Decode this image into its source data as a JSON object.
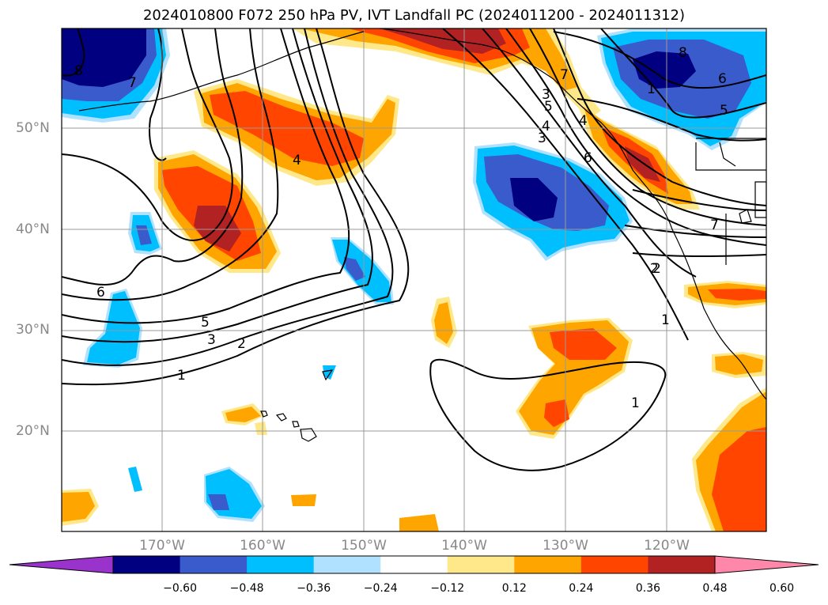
{
  "title": "2024010800 F072 250 hPa PV, IVT Landfall PC (2024011200 - 2024011312)",
  "lat_labels": [
    "50°N",
    "40°N",
    "30°N",
    "20°N"
  ],
  "lon_labels": [
    "170°W",
    "160°W",
    "150°W",
    "140°W",
    "130°W",
    "120°W"
  ],
  "contour_labels": [
    "8",
    "7",
    "6",
    "5",
    "4",
    "3",
    "2",
    "1",
    "4",
    "3",
    "2",
    "5",
    "6",
    "7",
    "1",
    "6",
    "5",
    "4",
    "3",
    "2",
    "1",
    "1",
    "7",
    "8",
    "6",
    "5"
  ],
  "colorbar": {
    "ticks": [
      "−0.60",
      "−0.48",
      "−0.36",
      "−0.24",
      "−0.12",
      "0.12",
      "0.24",
      "0.36",
      "0.48",
      "0.60"
    ],
    "colors": [
      "#9933cc",
      "#000080",
      "#3a5bcc",
      "#00bfff",
      "#b0e2ff",
      "#ffffff",
      "#ffe88a",
      "#ffa500",
      "#ff4500",
      "#b22222",
      "#ff88aa"
    ]
  }
}
